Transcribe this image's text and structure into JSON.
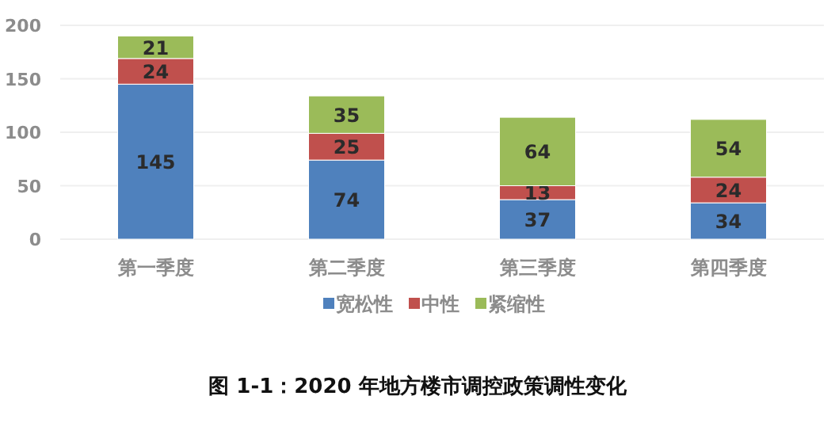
{
  "chart_data": {
    "type": "bar",
    "title": "图 1-1：2020 年地方楼市调控政策调性变化",
    "categories": [
      "第一季度",
      "第二季度",
      "第三季度",
      "第四季度"
    ],
    "series": [
      {
        "name": "宽松性",
        "color": "#4f81bd",
        "values": [
          145,
          74,
          37,
          34
        ]
      },
      {
        "name": "中性",
        "color": "#c0504d",
        "values": [
          24,
          25,
          13,
          24
        ]
      },
      {
        "name": "紧缩性",
        "color": "#9bbb59",
        "values": [
          21,
          35,
          64,
          54
        ]
      }
    ],
    "stacked": true,
    "ylim": [
      0,
      200
    ],
    "yticks": [
      0,
      50,
      100,
      150,
      200
    ],
    "grid": "y",
    "legend": "bottom",
    "data_labels": true
  }
}
